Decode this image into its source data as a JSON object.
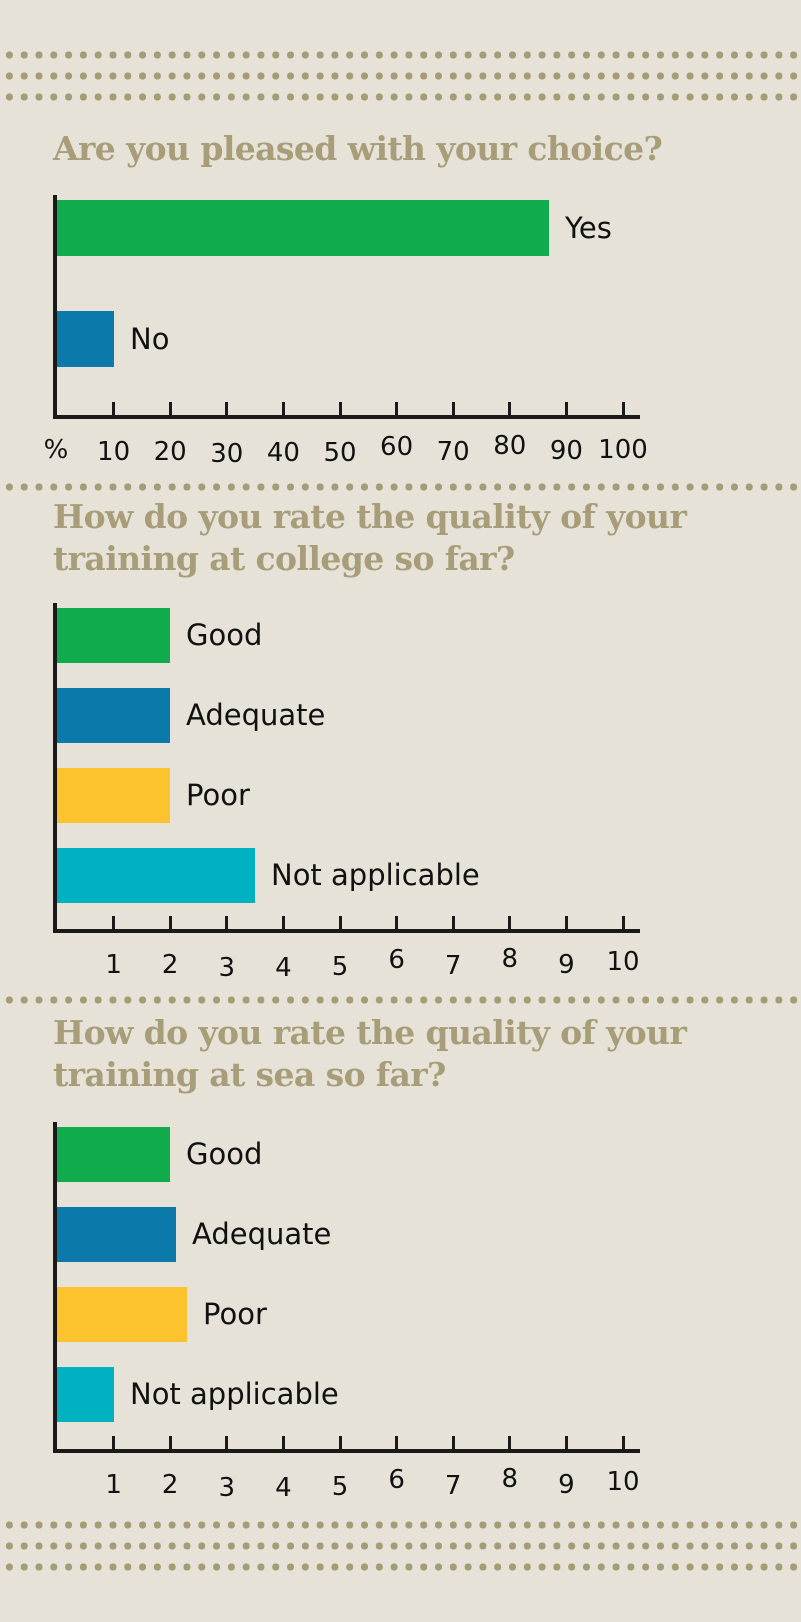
{
  "page": {
    "background": "#e6e2d8",
    "olive": "#a79d78",
    "axis_color": "#1a1a1a",
    "text_color": "#111111"
  },
  "chart_data": [
    {
      "type": "bar",
      "orientation": "horizontal",
      "title": "Are you pleased with your choice?",
      "unit_label": "%",
      "xlim": [
        0,
        100
      ],
      "ticks": [
        10,
        20,
        30,
        40,
        50,
        60,
        70,
        80,
        90,
        100
      ],
      "grid": false,
      "legend": "none",
      "bars": [
        {
          "label": "Yes",
          "value": 87,
          "color": "#10ab4c"
        },
        {
          "label": "No",
          "value": 10,
          "color": "#0b79aa"
        }
      ]
    },
    {
      "type": "bar",
      "orientation": "horizontal",
      "title": "How do you rate the quality of your training at college so far?",
      "unit_label": "",
      "xlim": [
        0,
        10
      ],
      "ticks": [
        1,
        2,
        3,
        4,
        5,
        6,
        7,
        8,
        9,
        10
      ],
      "grid": false,
      "legend": "none",
      "bars": [
        {
          "label": "Good",
          "value": 2,
          "color": "#10ab4c"
        },
        {
          "label": "Adequate",
          "value": 2,
          "color": "#0b79aa"
        },
        {
          "label": "Poor",
          "value": 2,
          "color": "#fdc32f"
        },
        {
          "label": "Not applicable",
          "value": 3.5,
          "color": "#00b1c1"
        }
      ]
    },
    {
      "type": "bar",
      "orientation": "horizontal",
      "title": "How do you rate the quality of your training at sea so far?",
      "unit_label": "",
      "xlim": [
        0,
        10
      ],
      "ticks": [
        1,
        2,
        3,
        4,
        5,
        6,
        7,
        8,
        9,
        10
      ],
      "grid": false,
      "legend": "none",
      "bars": [
        {
          "label": "Good",
          "value": 2,
          "color": "#10ab4c"
        },
        {
          "label": "Adequate",
          "value": 2.1,
          "color": "#0b79aa"
        },
        {
          "label": "Poor",
          "value": 2.3,
          "color": "#fdc32f"
        },
        {
          "label": "Not applicable",
          "value": 1,
          "color": "#00b1c1"
        }
      ]
    }
  ]
}
